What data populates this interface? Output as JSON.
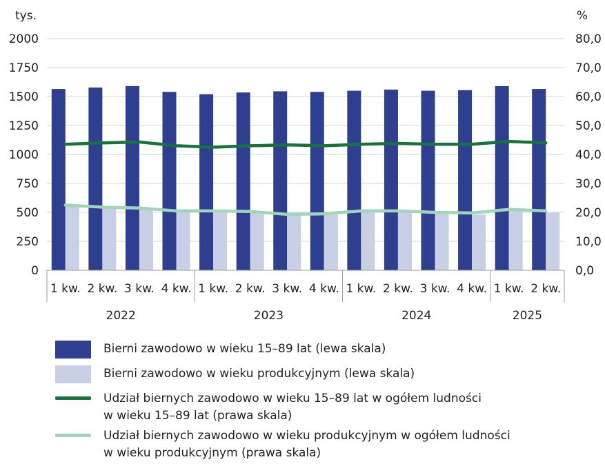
{
  "chart_data": {
    "type": "bar",
    "left_axis_unit": "tys.",
    "right_axis_unit": "%",
    "left_ticks": [
      "0",
      "250",
      "500",
      "750",
      "1000",
      "1250",
      "1500",
      "1750",
      "2000"
    ],
    "right_ticks": [
      "0,0",
      "10,0",
      "20,0",
      "30,0",
      "40,0",
      "50,0",
      "60,0",
      "70,0",
      "80,0"
    ],
    "ylim_left": [
      0,
      2000
    ],
    "ylim_right": [
      0,
      80
    ],
    "grid": true,
    "categories": [
      "1 kw.",
      "2 kw.",
      "3 kw.",
      "4 kw.",
      "1 kw.",
      "2 kw.",
      "3 kw.",
      "4 kw.",
      "1 kw.",
      "2 kw.",
      "3 kw.",
      "4 kw.",
      "1 kw.",
      "2 kw."
    ],
    "years": [
      {
        "label": "2022",
        "count": 4
      },
      {
        "label": "2023",
        "count": 4
      },
      {
        "label": "2024",
        "count": 4
      },
      {
        "label": "2025",
        "count": 2
      }
    ],
    "series": [
      {
        "name": "Bierni zawodowo w wieku 15–89 lat (lewa skala)",
        "axis": "left",
        "kind": "bar",
        "color": "#2e3f8f",
        "values": [
          1565,
          1578,
          1590,
          1540,
          1520,
          1535,
          1545,
          1540,
          1550,
          1560,
          1550,
          1555,
          1590,
          1565
        ]
      },
      {
        "name": "Bierni zawodowo w wieku produkcyjnym (lewa skala)",
        "axis": "left",
        "kind": "bar",
        "color": "#c9cfe4",
        "values": [
          565,
          545,
          540,
          520,
          510,
          505,
          470,
          480,
          510,
          505,
          490,
          480,
          520,
          500
        ]
      },
      {
        "name": "Udział biernych zawodowo w wieku 15–89 lat w ogółem ludności w wieku 15–89 lat (prawa skala)",
        "axis": "right",
        "kind": "line",
        "color": "#14743c",
        "values": [
          43.5,
          44.0,
          44.3,
          43.0,
          42.5,
          43.0,
          43.3,
          43.0,
          43.5,
          43.8,
          43.5,
          43.5,
          44.5,
          44.0
        ]
      },
      {
        "name": "Udział biernych zawodowo w wieku produkcyjnym w ogółem ludności w wieku produkcyjnym (prawa skala)",
        "axis": "right",
        "kind": "line",
        "color": "#9fd6ba",
        "values": [
          22.5,
          21.8,
          21.5,
          20.5,
          20.5,
          20.3,
          19.3,
          19.5,
          20.5,
          20.5,
          20.0,
          19.8,
          21.0,
          20.5
        ]
      }
    ]
  },
  "legend": [
    {
      "line1": "Bierni zawodowo w wieku 15–89 lat (lewa skala)",
      "line2": ""
    },
    {
      "line1": "Bierni zawodowo w wieku produkcyjnym (lewa skala)",
      "line2": ""
    },
    {
      "line1": "Udział biernych zawodowo w wieku 15–89 lat w ogółem ludności",
      "line2": "w wieku 15–89 lat (prawa skala)"
    },
    {
      "line1": "Udział biernych zawodowo w wieku produkcyjnym w ogółem ludności",
      "line2": "w wieku produkcyjnym (prawa skala)"
    }
  ]
}
